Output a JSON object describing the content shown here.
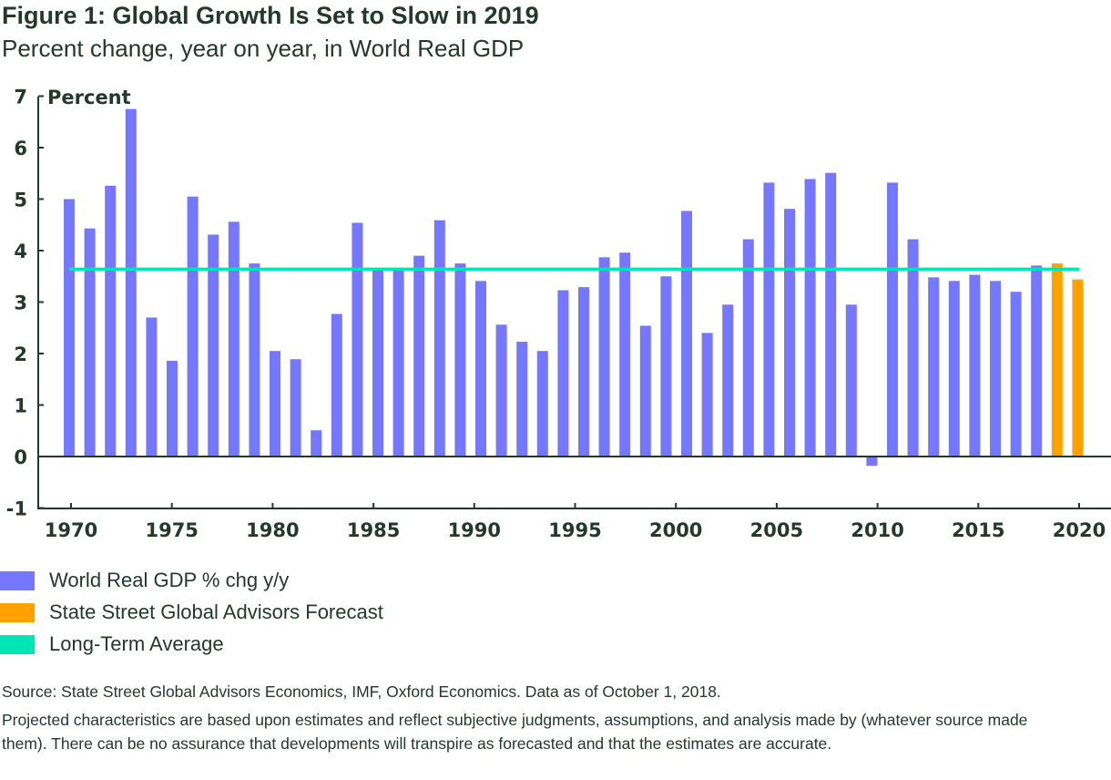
{
  "chart_data": {
    "type": "bar",
    "title": "Figure 1: Global Growth Is Set to Slow in 2019",
    "subtitle": "Percent change, year on year, in World Real GDP",
    "ylabel": "Percent",
    "xlabel": "",
    "ylim": [
      -1,
      7
    ],
    "yticks": [
      "-1",
      "0",
      "1",
      "2",
      "3",
      "4",
      "5",
      "6",
      "7"
    ],
    "xticks": [
      "1970",
      "1975",
      "1980",
      "1985",
      "1990",
      "1995",
      "2000",
      "2005",
      "2010",
      "2015",
      "2020"
    ],
    "grid": false,
    "legend_position": "bottom-left",
    "series": [
      {
        "name": "World Real GDP % chg y/y",
        "color": "#7578ff",
        "x": [
          1970,
          1971,
          1972,
          1973,
          1974,
          1975,
          1976,
          1977,
          1978,
          1979,
          1980,
          1981,
          1982,
          1983,
          1984,
          1985,
          1986,
          1987,
          1988,
          1989,
          1990,
          1991,
          1992,
          1993,
          1994,
          1995,
          1996,
          1997,
          1998,
          1999,
          2000,
          2001,
          2002,
          2003,
          2004,
          2005,
          2006,
          2007,
          2008,
          2009,
          2010,
          2011,
          2012,
          2013,
          2014,
          2015,
          2016,
          2017
        ],
        "values": [
          5.0,
          4.43,
          5.26,
          6.75,
          2.7,
          1.86,
          5.05,
          4.31,
          4.56,
          3.75,
          2.05,
          1.89,
          0.51,
          2.77,
          4.54,
          3.62,
          3.62,
          3.9,
          4.59,
          3.75,
          3.41,
          2.56,
          2.23,
          2.05,
          3.23,
          3.29,
          3.87,
          3.96,
          2.54,
          3.5,
          4.77,
          2.4,
          2.95,
          4.22,
          5.32,
          4.81,
          5.39,
          5.51,
          2.95,
          -0.18,
          5.32,
          4.22,
          3.48,
          3.41,
          3.53,
          3.41,
          3.2,
          3.71
        ]
      },
      {
        "name": "State Street Global Advisors Forecast",
        "color": "#ffa100",
        "x": [
          2018,
          2019
        ],
        "values": [
          3.75,
          3.44
        ]
      },
      {
        "name": "Long-Term Average",
        "color": "#00e5b4",
        "type": "line",
        "value": 3.64
      }
    ]
  },
  "notes": {
    "source": "Source: State Street Global Advisors Economics, IMF, Oxford Economics. Data as of October 1, 2018.",
    "disclaimer": "Projected characteristics are based upon estimates and reflect subjective judgments, assumptions, and analysis made by (whatever source made them). There can be no assurance that developments will transpire as forecasted and that the estimates are accurate."
  }
}
